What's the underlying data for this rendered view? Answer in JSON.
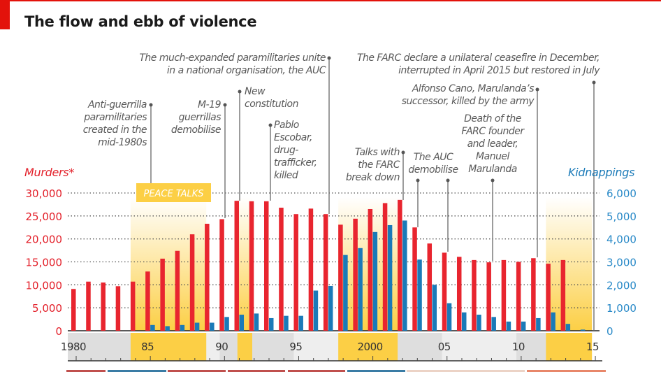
{
  "title": "The flow and ebb of violence",
  "annotations": {
    "paramilitaries": [
      "Anti-guerrilla",
      "paramilitaries",
      "created in the",
      "mid-1980s"
    ],
    "m19": [
      "M-19",
      "guerrillas",
      "demobilise"
    ],
    "constitution": [
      "New",
      "constitution"
    ],
    "escobar": [
      "Pablo",
      "Escobar,",
      "drug-",
      "trafficker,",
      "killed"
    ],
    "auc_unite": [
      "The much-expanded paramilitaries unite",
      "in a national organisation, the AUC"
    ],
    "farc_talks": [
      "Talks with",
      "the FARC",
      "break down"
    ],
    "auc_demobilise": [
      "The AUC",
      "demobilise"
    ],
    "marulanda": [
      "Death of the",
      "FARC founder",
      "and leader,",
      "Manuel",
      "Marulanda"
    ],
    "cano": [
      "Alfonso Cano, Marulanda’s",
      "successor, killed  by the army"
    ],
    "ceasefire": [
      "The FARC declare a unilateral ceasefire in December,",
      "interrupted in April 2015 but restored in July"
    ]
  },
  "peace_talks_label": "PEACE TALKS",
  "colors": {
    "murders": "#e8252f",
    "kidnappings": "#1a7ab8",
    "peace": "#fccf45",
    "accent": "#e3120b"
  },
  "chart_data": {
    "type": "bar",
    "title": "The flow and ebb of violence",
    "x": [
      1980,
      1981,
      1982,
      1983,
      1984,
      1985,
      1986,
      1987,
      1988,
      1989,
      1990,
      1991,
      1992,
      1993,
      1994,
      1995,
      1996,
      1997,
      1998,
      1999,
      2000,
      2001,
      2002,
      2003,
      2004,
      2005,
      2006,
      2007,
      2008,
      2009,
      2010,
      2011,
      2012,
      2013,
      2014
    ],
    "series": [
      {
        "name": "Murders*",
        "axis": "left",
        "values": [
          9100,
          10700,
          10500,
          9700,
          10700,
          12900,
          15700,
          17400,
          21000,
          23300,
          24300,
          28300,
          28200,
          28200,
          26800,
          25400,
          26600,
          25400,
          23100,
          24400,
          26500,
          27800,
          28500,
          22500,
          19000,
          17000,
          16100,
          15400,
          14900,
          15400,
          15000,
          15800,
          14600,
          15400,
          null
        ]
      },
      {
        "name": "Kidnappings",
        "axis": "right",
        "values": [
          null,
          null,
          null,
          null,
          null,
          250,
          200,
          250,
          350,
          350,
          600,
          700,
          750,
          550,
          650,
          650,
          1750,
          1950,
          3300,
          3600,
          4300,
          4600,
          4800,
          3100,
          2000,
          1200,
          800,
          700,
          600,
          400,
          400,
          550,
          800,
          300,
          50
        ]
      }
    ],
    "y_left": {
      "label": "Murders*",
      "range": [
        0,
        30000
      ],
      "ticks": [
        "0",
        "5,000",
        "10,000",
        "15,000",
        "20,000",
        "25,000",
        "30,000"
      ]
    },
    "y_right": {
      "label": "Kidnappings",
      "range": [
        0,
        6000
      ],
      "ticks": [
        "0",
        "1,000",
        "2,000",
        "3,000",
        "4,000",
        "5,000",
        "6,000"
      ]
    },
    "x_ticks": [
      {
        "year": 1980,
        "label": "1980"
      },
      {
        "year": 1985,
        "label": "85"
      },
      {
        "year": 1990,
        "label": "90"
      },
      {
        "year": 1995,
        "label": "95"
      },
      {
        "year": 2000,
        "label": "2000"
      },
      {
        "year": 2005,
        "label": "05"
      },
      {
        "year": 2010,
        "label": "10"
      },
      {
        "year": 2015,
        "label": "15"
      }
    ],
    "peace_talks_periods": [
      [
        1984,
        1989.1
      ],
      [
        1991.2,
        1992.2
      ],
      [
        1998,
        2002
      ],
      [
        2012,
        2015.1
      ]
    ],
    "grid": true
  }
}
